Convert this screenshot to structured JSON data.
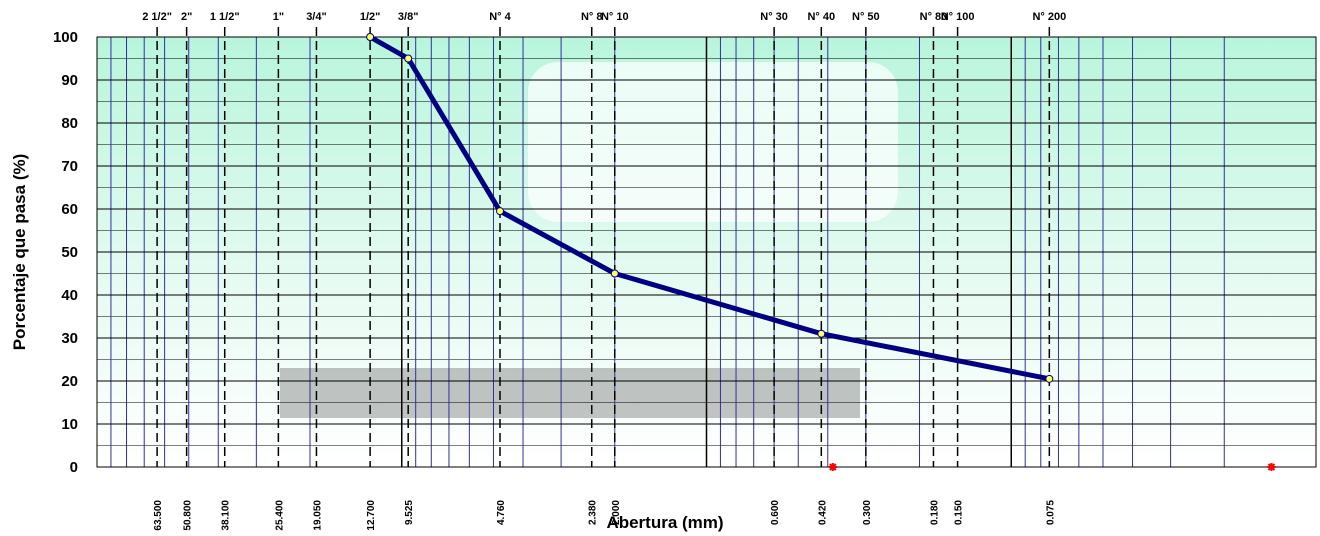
{
  "chart_data": {
    "type": "line",
    "xlabel": "Abertura (mm)",
    "ylabel": "Porcentaje que pasa (%)",
    "xscale": "log",
    "x_reversed": true,
    "xlim": [
      100,
      0.01
    ],
    "ylim": [
      0,
      100
    ],
    "yticks": [
      0,
      10,
      20,
      30,
      40,
      50,
      60,
      70,
      80,
      90,
      100
    ],
    "y_minor_ticks": [
      5,
      15,
      25,
      35,
      45,
      55,
      65,
      75,
      85,
      95
    ],
    "xgrid": [
      90,
      80,
      70,
      60,
      50,
      40,
      30,
      20,
      10,
      9,
      8,
      7,
      6,
      5,
      4,
      3,
      2,
      1,
      0.9,
      0.8,
      0.7,
      0.6,
      0.5,
      0.4,
      0.3,
      0.2,
      0.1,
      0.09,
      0.08,
      0.07,
      0.06,
      0.05,
      0.04,
      0.03,
      0.02
    ],
    "grid": true,
    "xticks": [
      {
        "value": 63.5,
        "label": "63.500"
      },
      {
        "value": 50.8,
        "label": "50.800"
      },
      {
        "value": 38.1,
        "label": "38.100"
      },
      {
        "value": 25.4,
        "label": "25.400"
      },
      {
        "value": 19.05,
        "label": "19.050"
      },
      {
        "value": 12.7,
        "label": "12.700"
      },
      {
        "value": 9.525,
        "label": "9.525"
      },
      {
        "value": 4.76,
        "label": "4.760"
      },
      {
        "value": 2.38,
        "label": "2.380"
      },
      {
        "value": 2.0,
        "label": "2.000"
      },
      {
        "value": 0.6,
        "label": "0.600"
      },
      {
        "value": 0.42,
        "label": "0.420"
      },
      {
        "value": 0.3,
        "label": "0.300"
      },
      {
        "value": 0.18,
        "label": "0.180"
      },
      {
        "value": 0.15,
        "label": "0.150"
      },
      {
        "value": 0.075,
        "label": "0.075"
      }
    ],
    "sieves": [
      "2 1/2\"",
      "2\"",
      "1 1/2\"",
      "1\"",
      "3/4\"",
      "1/2\"",
      "3/8\"",
      "N° 4",
      "N° 8",
      "N° 10",
      "N° 30",
      "N° 40",
      "N° 50",
      "N° 80",
      "N° 100",
      "N° 200"
    ],
    "series": [
      {
        "color": "#000080",
        "marker_color": "#ffff66",
        "x": [
          12.7,
          9.525,
          4.76,
          2.0,
          0.42,
          0.075
        ],
        "values": [
          100,
          95,
          59.5,
          45,
          31,
          20.5
        ]
      },
      {
        "color": "#ff0000",
        "marker": "star",
        "x": [
          0.385,
          0.014
        ],
        "values": [
          0,
          0
        ]
      }
    ]
  }
}
